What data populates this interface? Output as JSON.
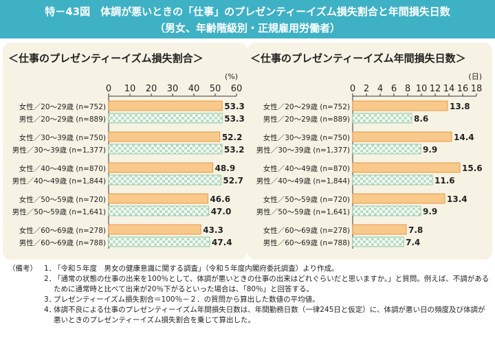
{
  "header": {
    "line1": "特－43図　体調が悪いときの「仕事」のプレゼンティーイズム損失割合と年間損失日数",
    "line2": "（男女、年齢階級別・正規雇用労働者）"
  },
  "colors": {
    "header_bg": "#3fb1c5",
    "panel_bg": "#f7f3e4",
    "female_bar": "#f8c98a",
    "female_border": "#e0892f",
    "male_check_a": "#b6dfc1",
    "male_check_b": "#ffffff"
  },
  "chart_data": [
    {
      "type": "bar",
      "orientation": "horizontal",
      "title": "＜仕事のプレゼンティーイズム損失割合＞",
      "unit": "(%)",
      "xlim": [
        0,
        60
      ],
      "ticks": [
        "0",
        "10",
        "20",
        "30",
        "40",
        "50",
        "60"
      ],
      "categories": [
        "女性／20～29歳 (n=752)",
        "男性／20～29歳 (n=889)",
        "女性／30～39歳 (n=750)",
        "男性／30～39歳 (n=1,377)",
        "女性／40～49歳 (n=870)",
        "男性／40～49歳 (n=1,844)",
        "女性／50～59歳 (n=720)",
        "男性／50～59歳 (n=1,641)",
        "女性／60～69歳 (n=278)",
        "男性／60～69歳 (n=788)"
      ],
      "values": [
        53.3,
        53.3,
        52.2,
        53.2,
        48.9,
        52.7,
        46.6,
        47.0,
        43.3,
        47.4
      ],
      "value_labels": [
        "53.3",
        "53.3",
        "52.2",
        "53.2",
        "48.9",
        "52.7",
        "46.6",
        "47.0",
        "43.3",
        "47.4"
      ],
      "sex": [
        "female",
        "male",
        "female",
        "male",
        "female",
        "male",
        "female",
        "male",
        "female",
        "male"
      ]
    },
    {
      "type": "bar",
      "orientation": "horizontal",
      "title": "＜仕事のプレゼンティーイズム年間損失日数＞",
      "unit": "(日)",
      "xlim": [
        0,
        18
      ],
      "ticks": [
        "0",
        "2",
        "4",
        "6",
        "8",
        "10",
        "12",
        "14",
        "16",
        "18"
      ],
      "categories": [
        "女性／20～29歳 (n=752)",
        "男性／20～29歳 (n=889)",
        "女性／30～39歳 (n=750)",
        "男性／30～39歳 (n=1,377)",
        "女性／40～49歳 (n=870)",
        "男性／40～49歳 (n=1,844)",
        "女性／50～59歳 (n=720)",
        "男性／50～59歳 (n=1,641)",
        "女性／60～69歳 (n=278)",
        "男性／60～69歳 (n=788)"
      ],
      "values": [
        13.8,
        8.6,
        14.4,
        9.9,
        15.6,
        11.6,
        13.4,
        9.9,
        7.8,
        7.4
      ],
      "value_labels": [
        "13.8",
        "8.6",
        "14.4",
        "9.9",
        "15.6",
        "11.6",
        "13.4",
        "9.9",
        "7.8",
        "7.4"
      ],
      "sex": [
        "female",
        "male",
        "female",
        "male",
        "female",
        "male",
        "female",
        "male",
        "female",
        "male"
      ]
    }
  ],
  "notes": {
    "lead": "（備考）",
    "items": [
      {
        "num": "1．",
        "text": "「令和５年度　男女の健康意識に関する調査」（令和５年度内閣府委託調査）より作成。"
      },
      {
        "num": "2．",
        "text": "「通常の状態の仕事の出来を100％として、体調が悪いときの仕事の出来はどれぐらいだと思いますか。」と質問。例えば、不調があるために通常時と比べて出来が20％下がるといった場合は、「80％」と回答する。"
      },
      {
        "num": "3．",
        "text": "プレゼンティーイズム損失割合＝100％－２．の質問から算出した数値の平均値。"
      },
      {
        "num": "4．",
        "text": "体調不良による仕事のプレゼンティーイズム年間損失日数は、年間勤務日数（一律245日と仮定）に、体調が悪い日の頻度及び体調が悪いときのプレゼンティーイズム損失割合を乗じて算出した。"
      }
    ]
  }
}
